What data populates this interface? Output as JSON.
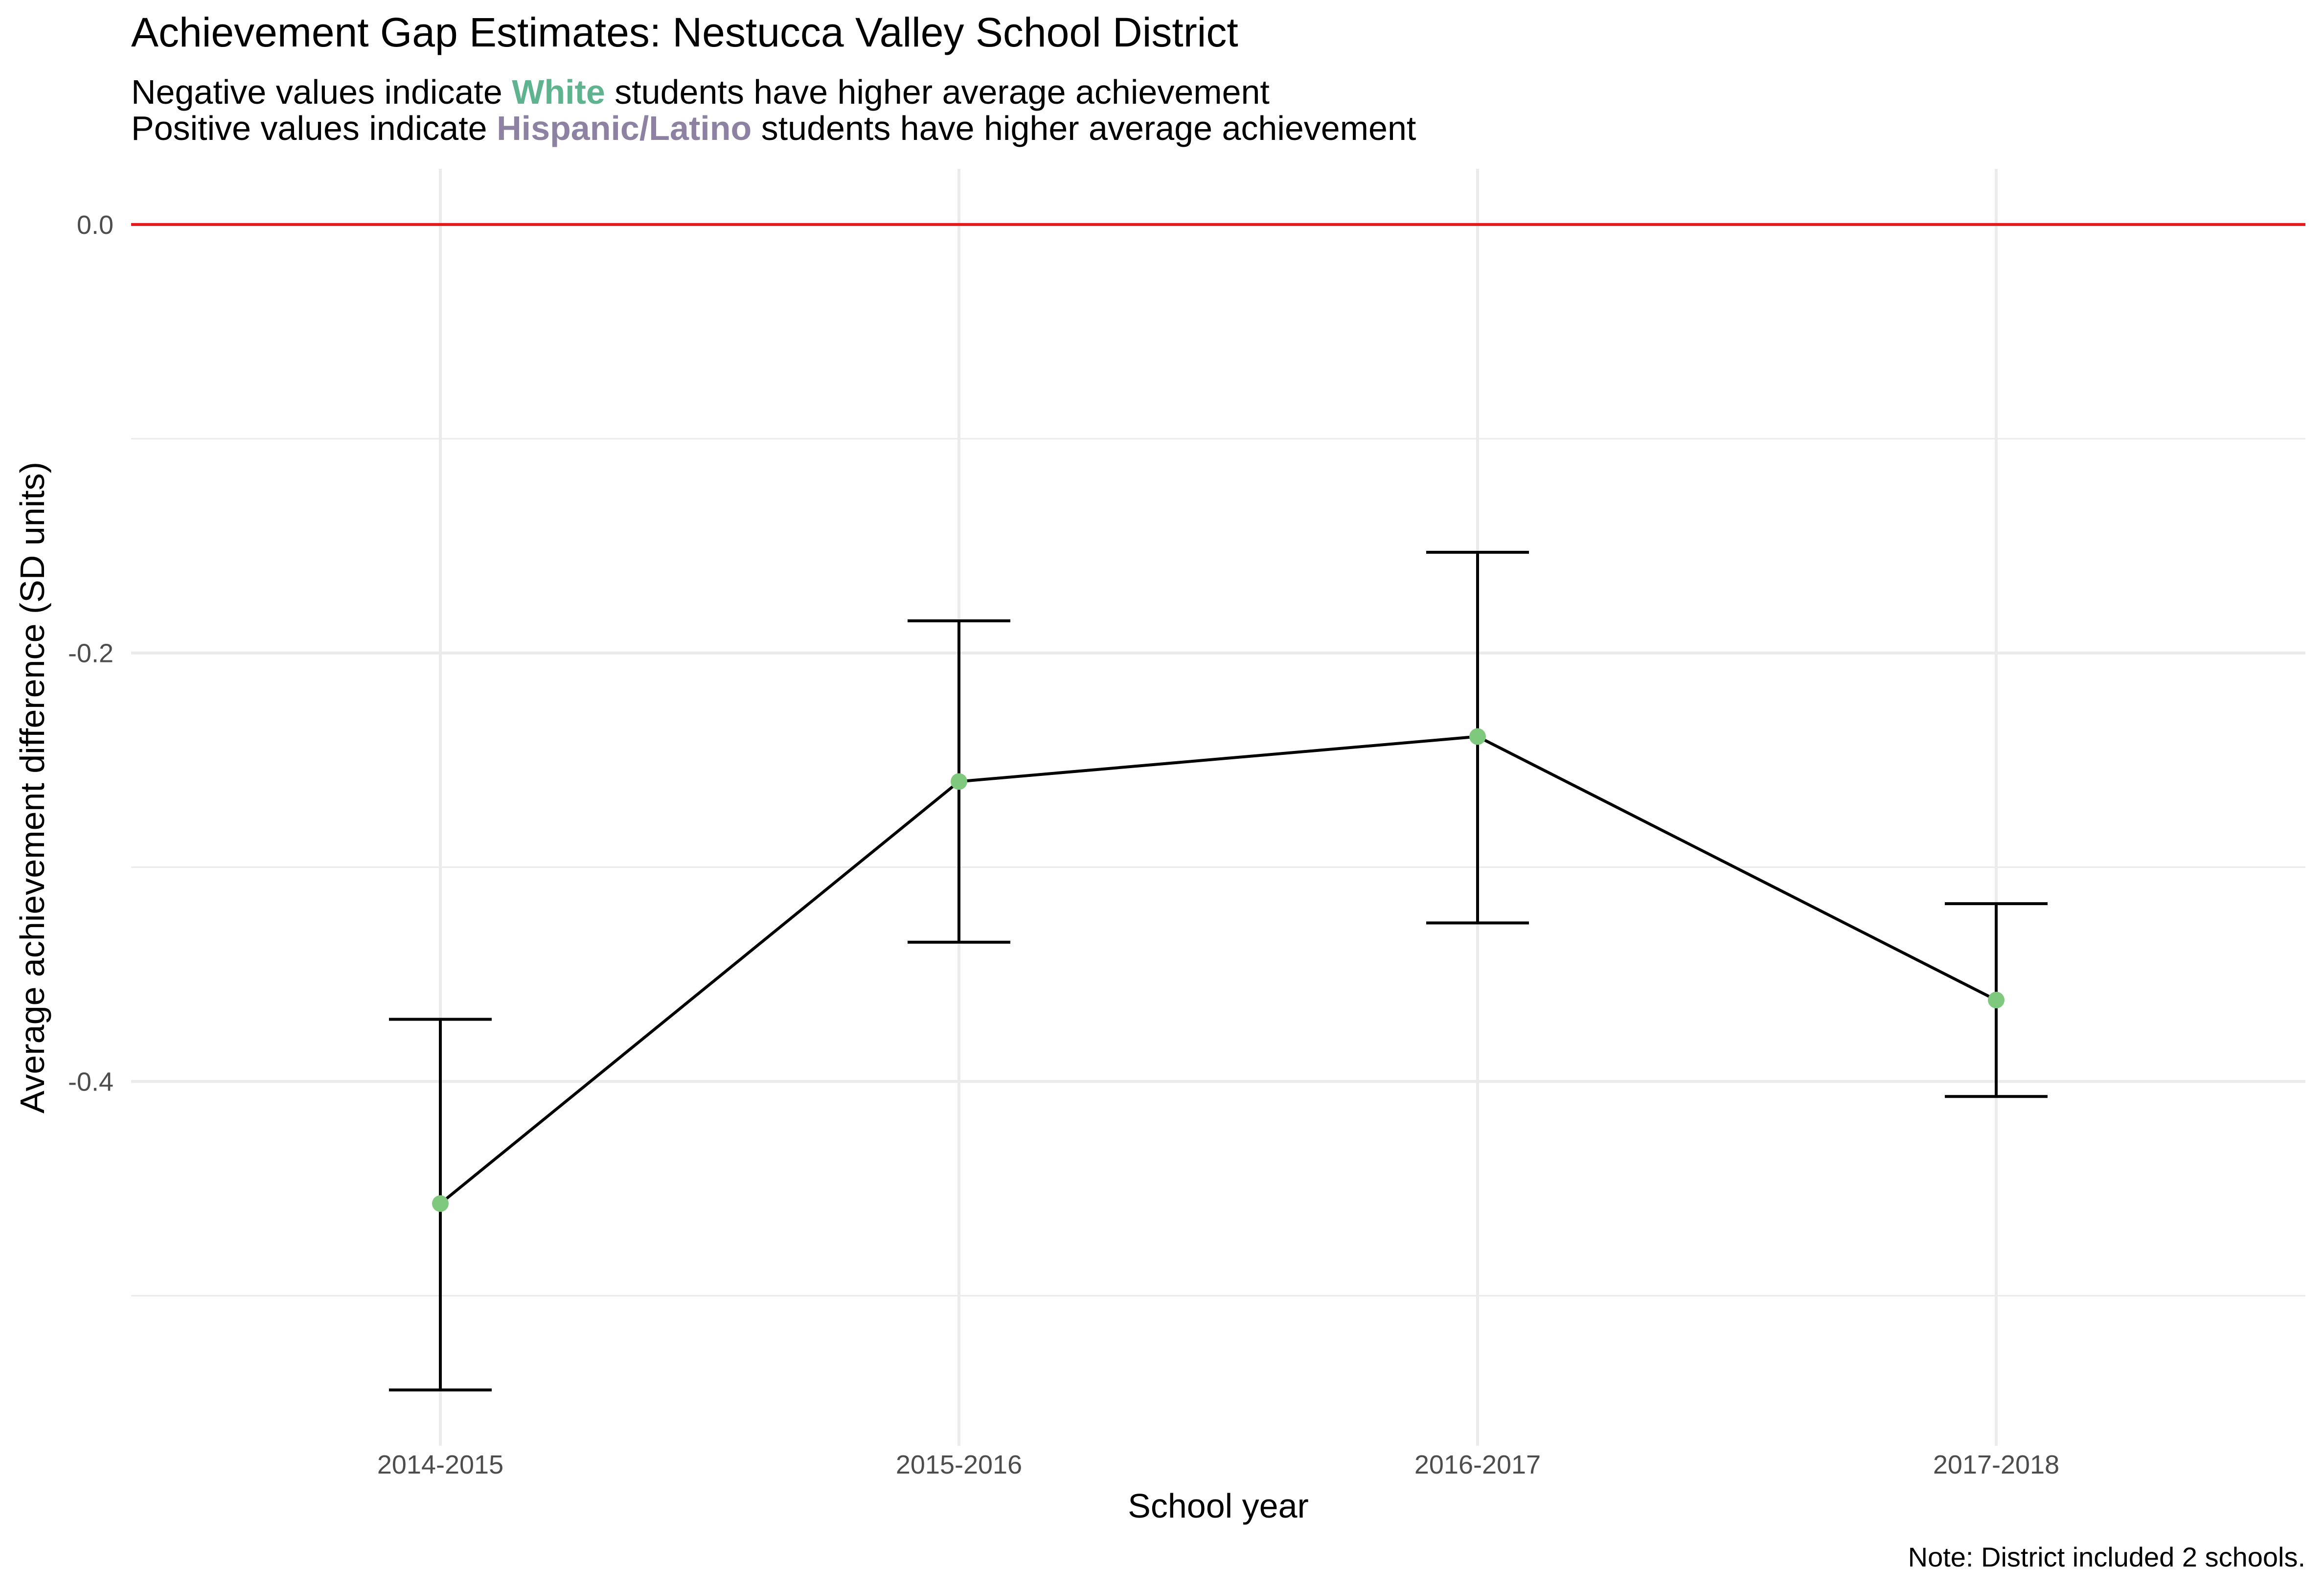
{
  "header": {
    "title": "Achievement Gap Estimates: Nestucca Valley School District",
    "subtitle1": {
      "before": "Negative values indicate ",
      "highlight": "White",
      "after": " students have higher average achievement"
    },
    "subtitle2": {
      "before": "Positive values indicate ",
      "highlight": "Hispanic/Latino",
      "after": " students have higher average achievement"
    }
  },
  "colors": {
    "white_highlight": "#5fb38e",
    "hispanic_highlight": "#8e82a3",
    "reference_line": "#e41a1c",
    "point": "#7fc97f",
    "line": "#000000",
    "grid": "#ebebeb"
  },
  "note": "Note: District included 2 schools.",
  "chart_data": {
    "type": "line",
    "xlabel": "School year",
    "ylabel": "Average achievement difference (SD units)",
    "categories": [
      "2014-2015",
      "2015-2016",
      "2016-2017",
      "2017-2018"
    ],
    "values": [
      -0.457,
      -0.26,
      -0.239,
      -0.362
    ],
    "error_lower": [
      -0.544,
      -0.335,
      -0.326,
      -0.407
    ],
    "error_upper": [
      -0.371,
      -0.185,
      -0.153,
      -0.317
    ],
    "reference_line_y": 0.0,
    "yticks": [
      0.0,
      -0.2,
      -0.4
    ],
    "yticks_labels": [
      "0.0",
      "-0.2",
      "-0.4"
    ],
    "ylim": [
      -0.57,
      0.026
    ],
    "grid": true,
    "legend": "none"
  }
}
